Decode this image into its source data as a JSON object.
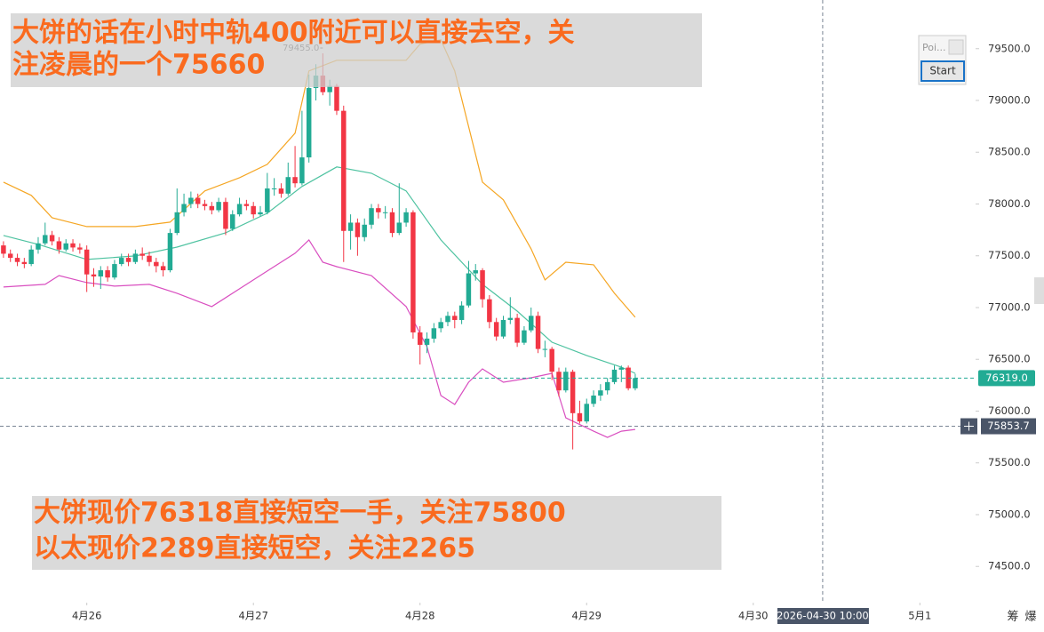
{
  "chart_data": {
    "type": "candlestick",
    "up_color": "#22ab94",
    "down_color": "#f23645",
    "open": [
      77600,
      77520,
      77480,
      77440,
      77420,
      77560,
      77620,
      77700,
      77640,
      77560,
      77620,
      77580,
      77560,
      77320,
      77300,
      77360,
      77290,
      77420,
      77480,
      77440,
      77520,
      77500,
      77440,
      77400,
      77360,
      77720,
      77920,
      78000,
      78060,
      78000,
      77980,
      77940,
      78020,
      77760,
      77900,
      78000,
      77980,
      77900,
      77920,
      78150,
      78150,
      78100,
      78260,
      78200,
      78450,
      79120,
      79240,
      79080,
      79140,
      78900,
      77740,
      77820,
      77680,
      77800,
      77960,
      77920,
      77920,
      77720,
      77820,
      77920,
      76760,
      76640,
      76700,
      76800,
      76860,
      76920,
      76880,
      77020,
      77330,
      77360,
      77080,
      76860,
      76720,
      76880,
      76900,
      76660,
      76780,
      76920,
      76600,
      76600,
      76380,
      76200,
      76380,
      75980,
      75900,
      76070,
      76150,
      76200,
      76280,
      76400,
      76420,
      76220
    ],
    "high": [
      77640,
      77560,
      77520,
      77480,
      77600,
      77680,
      77820,
      77740,
      77680,
      77660,
      77660,
      77620,
      77600,
      77380,
      77400,
      77400,
      77460,
      77520,
      77520,
      77560,
      77580,
      77540,
      77480,
      77440,
      77760,
      78150,
      78100,
      78120,
      78100,
      78040,
      78020,
      78060,
      78060,
      77940,
      78060,
      78040,
      78020,
      77980,
      78300,
      78250,
      78200,
      78400,
      78560,
      78900,
      79250,
      79350,
      79455,
      79200,
      79160,
      78950,
      77900,
      77860,
      77860,
      78000,
      78000,
      77980,
      77960,
      78200,
      77960,
      77940,
      76820,
      76760,
      76850,
      76900,
      76960,
      76960,
      77060,
      77450,
      77420,
      77380,
      77120,
      76900,
      76920,
      77100,
      76940,
      76820,
      77000,
      76960,
      76680,
      76620,
      76420,
      76420,
      76400,
      76100,
      76120,
      76200,
      76260,
      76320,
      76440,
      76440,
      76440,
      76360
    ],
    "low": [
      77480,
      77440,
      77400,
      77380,
      77400,
      77520,
      77600,
      77600,
      77520,
      77540,
      77540,
      77520,
      77150,
      77200,
      77180,
      77250,
      77270,
      77400,
      77400,
      77420,
      77460,
      77400,
      77340,
      77300,
      77340,
      77700,
      77880,
      77960,
      77960,
      77940,
      77900,
      77920,
      77700,
      77740,
      77880,
      77940,
      77860,
      77880,
      77900,
      78080,
      78060,
      78080,
      78160,
      78180,
      78400,
      79000,
      79050,
      78950,
      78860,
      77440,
      77560,
      77500,
      77640,
      77760,
      77860,
      77860,
      77680,
      77700,
      77780,
      76700,
      76450,
      76560,
      76660,
      76760,
      76820,
      76800,
      76840,
      77000,
      77260,
      77000,
      76800,
      76680,
      76700,
      76840,
      76620,
      76640,
      76760,
      76560,
      76520,
      76300,
      76140,
      76180,
      75630,
      75880,
      75880,
      76040,
      76100,
      76160,
      76260,
      76280,
      76200,
      76200
    ],
    "close": [
      77520,
      77480,
      77440,
      77420,
      77560,
      77620,
      77700,
      77640,
      77560,
      77620,
      77580,
      77560,
      77320,
      77300,
      77360,
      77290,
      77420,
      77480,
      77440,
      77520,
      77500,
      77440,
      77400,
      77360,
      77720,
      77920,
      78000,
      78060,
      78000,
      77980,
      77940,
      78020,
      77760,
      77900,
      78000,
      77980,
      77900,
      77920,
      78150,
      78150,
      78100,
      78260,
      78200,
      78450,
      79120,
      79240,
      79080,
      79140,
      78900,
      77740,
      77820,
      77680,
      77800,
      77960,
      77920,
      77920,
      77720,
      77820,
      77920,
      76760,
      76640,
      76700,
      76800,
      76860,
      76920,
      76880,
      77020,
      77330,
      77360,
      77080,
      76860,
      76720,
      76880,
      76900,
      76660,
      76780,
      76920,
      76600,
      76600,
      76380,
      76200,
      76380,
      75980,
      75900,
      76070,
      76150,
      76200,
      76280,
      76400,
      76420,
      76220,
      76319
    ],
    "bands": [
      {
        "color": "#f5a623",
        "x": [
          0,
          4,
          7,
          12,
          19,
          24,
          29,
          34,
          38,
          42,
          44,
          48,
          53,
          58,
          60,
          63,
          65,
          69,
          72,
          76,
          78,
          81,
          85,
          88,
          91
        ],
        "values": [
          78211,
          78083,
          77868,
          77782,
          77782,
          77825,
          78126,
          78254,
          78383,
          78684,
          79285,
          79388,
          79388,
          79388,
          79543,
          79586,
          79285,
          78211,
          78040,
          77567,
          77267,
          77438,
          77413,
          77138,
          76906
        ]
      },
      {
        "color": "#4fc3a1",
        "x": [
          0,
          5,
          12,
          19,
          25,
          32,
          38,
          43,
          48,
          53,
          58,
          63,
          69,
          74,
          79,
          84,
          89,
          91
        ],
        "values": [
          77696,
          77610,
          77464,
          77499,
          77584,
          77722,
          77911,
          78169,
          78358,
          78297,
          78126,
          77653,
          77224,
          76966,
          76665,
          76537,
          76425,
          76365
        ]
      },
      {
        "color": "#d94fc0",
        "x": [
          0,
          6,
          8,
          12,
          16,
          21,
          25,
          30,
          34,
          38,
          42,
          44,
          46,
          48,
          53,
          58,
          61,
          63,
          65,
          67,
          69,
          72,
          76,
          79,
          81,
          85,
          87,
          89,
          91
        ],
        "values": [
          77198,
          77224,
          77309,
          77241,
          77207,
          77224,
          77138,
          77009,
          77181,
          77353,
          77524,
          77653,
          77438,
          77395,
          77309,
          77009,
          76622,
          76150,
          76064,
          76279,
          76408,
          76279,
          76322,
          76365,
          75935,
          75806,
          75746,
          75806,
          75823
        ]
      }
    ],
    "xlim": [
      -0.5,
      139
    ],
    "xticks": [
      {
        "value": 12,
        "label": "4月26"
      },
      {
        "value": 36,
        "label": "4月27"
      },
      {
        "value": 60,
        "label": "4月28"
      },
      {
        "value": 84,
        "label": "4月29"
      },
      {
        "value": 108,
        "label": "4月30"
      },
      {
        "value": 132,
        "label": "5月1"
      }
    ],
    "ylim": [
      74150,
      79970
    ],
    "yticks": [
      {
        "value": 74500,
        "label": "74500.0"
      },
      {
        "value": 75000,
        "label": "75000.0"
      },
      {
        "value": 75500,
        "label": "75500.0"
      },
      {
        "value": 76000,
        "label": "76000.0"
      },
      {
        "value": 76500,
        "label": "76500.0"
      },
      {
        "value": 77000,
        "label": "77000.0"
      },
      {
        "value": 77500,
        "label": "77500.0"
      },
      {
        "value": 78000,
        "label": "78000.0"
      },
      {
        "value": 78500,
        "label": "78500.0"
      },
      {
        "value": 79000,
        "label": "79000.0"
      },
      {
        "value": 79500,
        "label": "79500.0"
      }
    ],
    "high_label": {
      "value": 79455,
      "label": "79455.0"
    },
    "last_price": {
      "value": 76319,
      "label": "76319.0"
    },
    "crosshair": {
      "x": {
        "value": 118,
        "label": "2026-04-30 10:00"
      },
      "y": 75853.7
    },
    "annotations": [
      {
        "lines": [
          "大饼的话在小时中轨400附近可以直接去空，关",
          "注凌晨的一个75660"
        ]
      },
      {
        "lines": [
          "大饼现价76318直接短空一手，关注75800",
          "以太现价2289直接短空，关注2265"
        ]
      }
    ],
    "widget": {
      "title": "Poi...",
      "button": "Start"
    },
    "toolbar": [
      "筹",
      "爆"
    ]
  }
}
